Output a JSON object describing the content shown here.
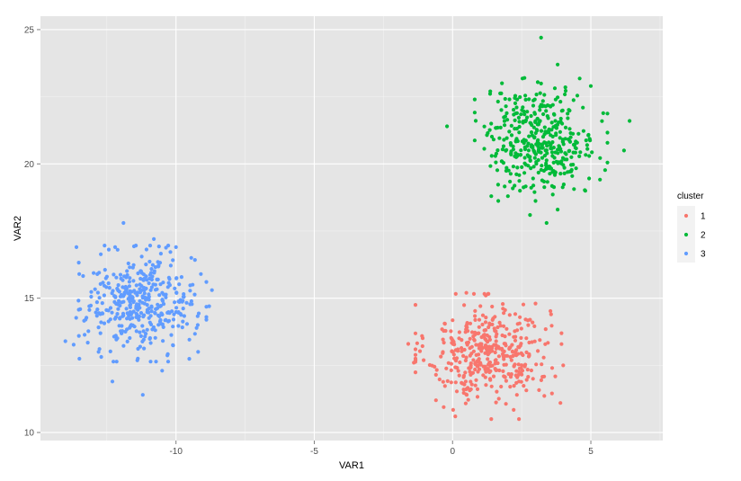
{
  "chart_data": {
    "type": "scatter",
    "title": "",
    "xlabel": "VAR1",
    "ylabel": "VAR2",
    "xlim": [
      -14.9,
      7.6
    ],
    "ylim": [
      9.7,
      25.5
    ],
    "x_ticks": [
      -10,
      -5,
      0,
      5
    ],
    "y_ticks": [
      10,
      15,
      20,
      25
    ],
    "x_tick_labels": [
      "-10",
      "-5",
      "0",
      "5"
    ],
    "y_tick_labels": [
      "10",
      "15",
      "20",
      "25"
    ],
    "grid": true,
    "background": "#e5e5e5",
    "legend": {
      "title": "cluster",
      "position": "right"
    },
    "series": [
      {
        "name": "1",
        "color": "#f8766d",
        "center": [
          1.3,
          13.0
        ],
        "spread": [
          1.1,
          0.9
        ],
        "points": [
          [
            0.4,
            11.6
          ],
          [
            -1.4,
            12.6
          ],
          [
            1.4,
            10.5
          ],
          [
            2.4,
            11.9
          ],
          [
            3.9,
            11.1
          ],
          [
            0.5,
            15.2
          ],
          [
            2.8,
            14.2
          ],
          [
            -0.6,
            11.2
          ],
          [
            3.0,
            14.8
          ],
          [
            1.2,
            15.1
          ],
          [
            3.6,
            12.4
          ],
          [
            -1.6,
            13.3
          ],
          [
            4.0,
            12.5
          ],
          [
            2.4,
            10.5
          ],
          [
            0.1,
            10.6
          ]
        ]
      },
      {
        "name": "2",
        "color": "#00ba38",
        "center": [
          3.2,
          20.9
        ],
        "spread": [
          1.0,
          0.95
        ],
        "points": [
          [
            3.2,
            24.7
          ],
          [
            3.8,
            23.7
          ],
          [
            6.4,
            21.6
          ],
          [
            -0.2,
            21.4
          ],
          [
            3.4,
            17.8
          ],
          [
            2.0,
            18.8
          ],
          [
            2.8,
            18.1
          ],
          [
            6.2,
            20.5
          ],
          [
            5.0,
            22.9
          ],
          [
            3.8,
            18.3
          ],
          [
            1.4,
            18.8
          ],
          [
            2.6,
            23.2
          ],
          [
            4.8,
            19.0
          ]
        ]
      },
      {
        "name": "3",
        "color": "#619cff",
        "center": [
          -11.3,
          14.8
        ],
        "spread": [
          1.0,
          0.9
        ],
        "points": [
          [
            -11.9,
            17.8
          ],
          [
            -13.6,
            16.9
          ],
          [
            -14.0,
            13.4
          ],
          [
            -11.2,
            11.4
          ],
          [
            -12.3,
            11.9
          ],
          [
            -8.7,
            15.3
          ],
          [
            -8.8,
            14.7
          ],
          [
            -9.2,
            13.0
          ],
          [
            -10.0,
            16.9
          ],
          [
            -12.8,
            13.0
          ],
          [
            -13.5,
            15.9
          ],
          [
            -10.8,
            17.2
          ],
          [
            -9.1,
            15.9
          ],
          [
            -12.2,
            16.9
          ],
          [
            -10.5,
            12.3
          ]
        ]
      }
    ]
  }
}
